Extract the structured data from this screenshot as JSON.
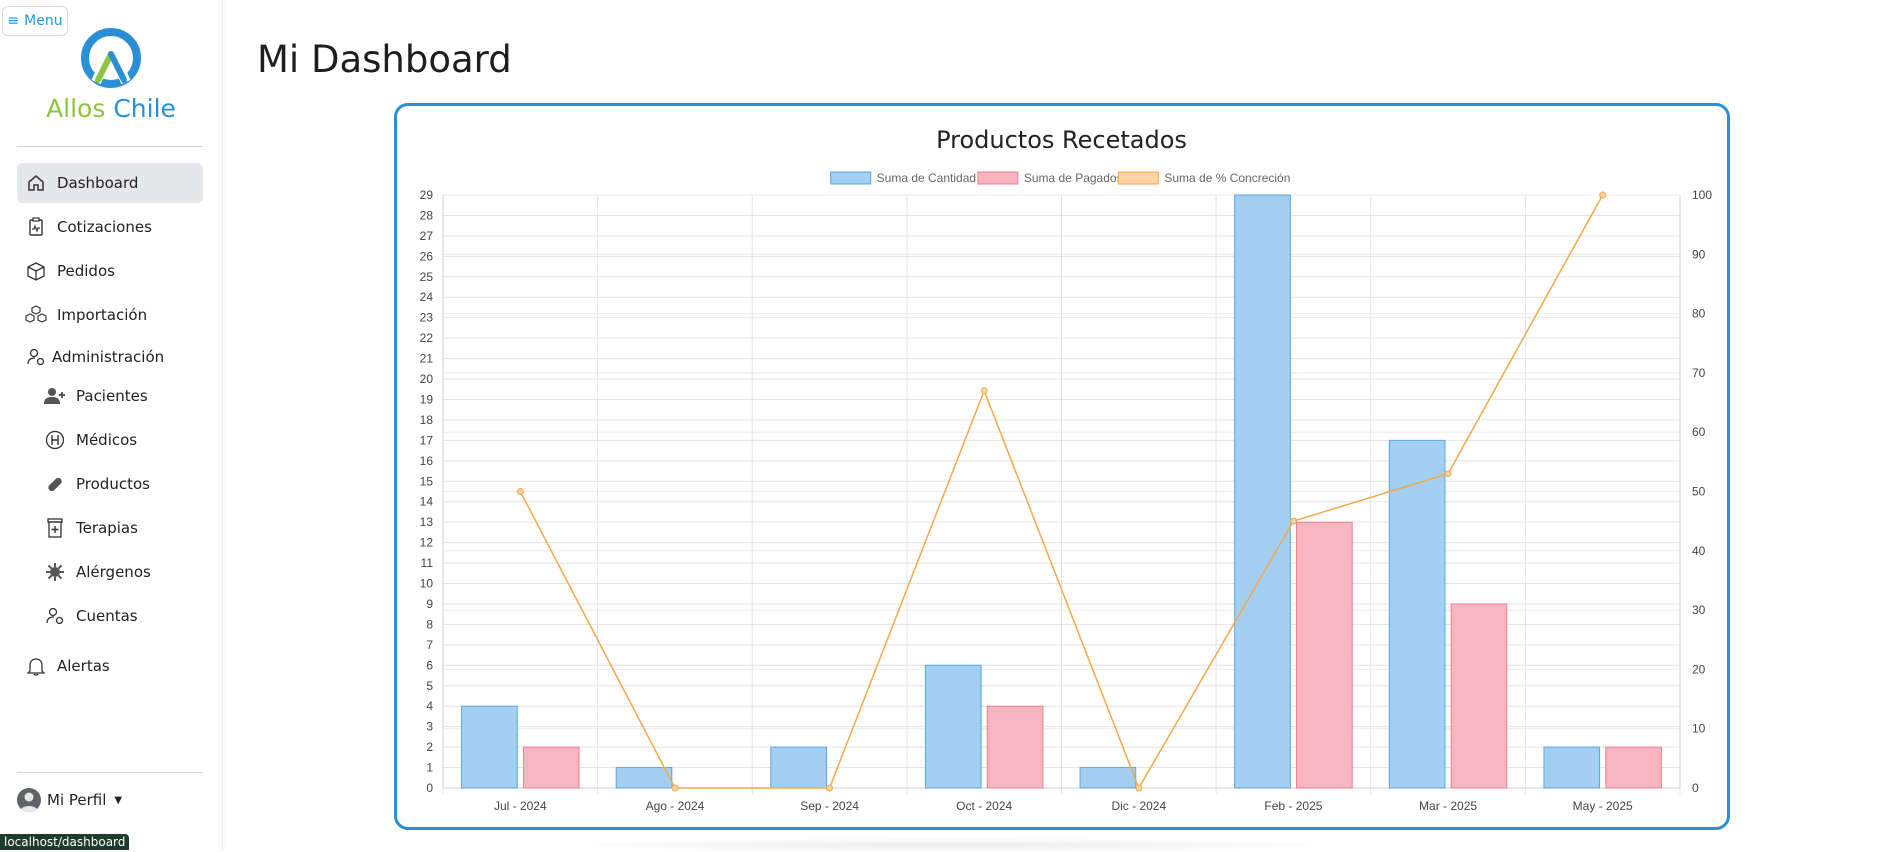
{
  "app": {
    "menu_label": "Menu",
    "logo_word1": "Allos",
    "logo_word2": "Chile",
    "status_url": "localhost/dashboard"
  },
  "sidebar": {
    "items": [
      {
        "label": "Dashboard",
        "icon": "home-icon",
        "active": true
      },
      {
        "label": "Cotizaciones",
        "icon": "clipboard-pulse-icon"
      },
      {
        "label": "Pedidos",
        "icon": "box-icon"
      },
      {
        "label": "Importación",
        "icon": "boxes-icon"
      },
      {
        "label": "Administración",
        "icon": "user-gear-icon"
      },
      {
        "label": "Pacientes",
        "icon": "user-plus-icon"
      },
      {
        "label": "Médicos",
        "icon": "hospital-h-icon"
      },
      {
        "label": "Productos",
        "icon": "capsule-icon"
      },
      {
        "label": "Terapias",
        "icon": "pill-bottle-icon"
      },
      {
        "label": "Alérgenos",
        "icon": "virus-icon"
      },
      {
        "label": "Cuentas",
        "icon": "user-gear-icon"
      },
      {
        "label": "Alertas",
        "icon": "bell-icon"
      }
    ],
    "profile_label": "Mi Perfil"
  },
  "main": {
    "title": "Mi Dashboard"
  },
  "colors": {
    "accent": "#2b8fd6",
    "bar_cantidad_fill": "#a3cff2",
    "bar_cantidad_stroke": "#5aa7e0",
    "bar_pagados_fill": "#f7b5c0",
    "bar_pagados_stroke": "#ef7f94",
    "line_concrecion": "#f5a84a"
  },
  "chart_data": {
    "type": "bar",
    "title": "Productos Recetados",
    "categories": [
      "Jul - 2024",
      "Ago - 2024",
      "Sep - 2024",
      "Oct - 2024",
      "Dic - 2024",
      "Feb - 2025",
      "Mar - 2025",
      "May - 2025"
    ],
    "series": [
      {
        "name": "Suma de Cantidad",
        "type": "bar",
        "axis": "left",
        "values": [
          4,
          1,
          2,
          6,
          1,
          29,
          17,
          2
        ]
      },
      {
        "name": "Suma de Pagados",
        "type": "bar",
        "axis": "left",
        "values": [
          2,
          0,
          0,
          4,
          0,
          13,
          9,
          2
        ]
      },
      {
        "name": "Suma de % Concreción",
        "type": "line",
        "axis": "right",
        "values": [
          50,
          0,
          0,
          67,
          0,
          45,
          53,
          100
        ]
      }
    ],
    "y_left": {
      "min": 0,
      "max": 29,
      "step": 1
    },
    "y_right": {
      "min": 0,
      "max": 100,
      "step": 10
    },
    "legend_position": "top",
    "grid": true
  }
}
